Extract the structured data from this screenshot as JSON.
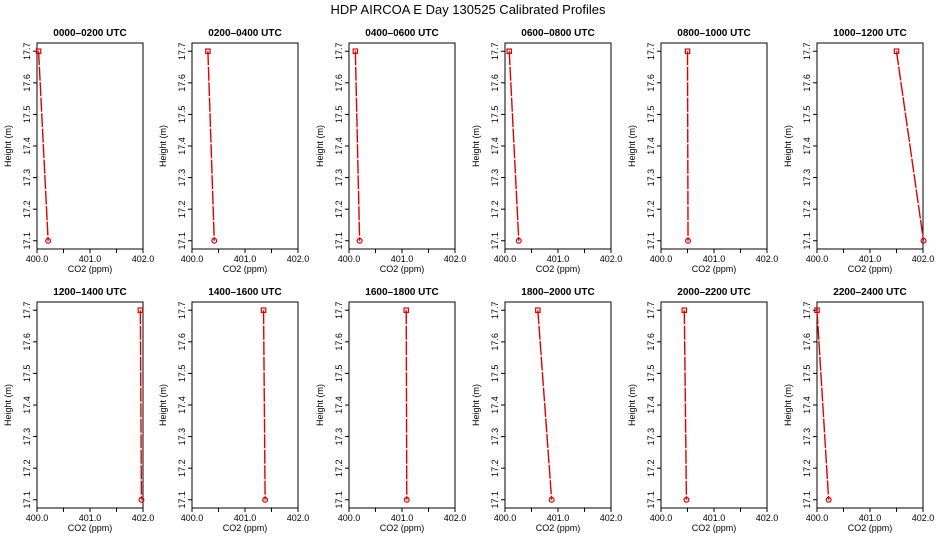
{
  "title": "HDP AIRCOA E  Day 130525  Calibrated Profiles",
  "colors": {
    "series": "#e00000",
    "axis": "#000000"
  },
  "chart_data": {
    "type": "line",
    "layout": {
      "rows": 2,
      "cols": 6
    },
    "xlabel": "CO2 (ppm)",
    "ylabel": "Height (m)",
    "xlim": [
      400.0,
      402.0
    ],
    "ylim": [
      17.1,
      17.7
    ],
    "xticks": [
      400.0,
      400.5,
      401.0,
      401.5,
      402.0
    ],
    "xtick_labels": [
      "400.0",
      "",
      "401.0",
      "",
      "402.0"
    ],
    "yticks": [
      17.1,
      17.2,
      17.3,
      17.4,
      17.5,
      17.6,
      17.7
    ],
    "ytick_labels": [
      "17.1",
      "17.2",
      "17.3",
      "17.4",
      "17.5",
      "17.6",
      "17.7"
    ],
    "panels": [
      {
        "title": "0000–0200 UTC",
        "x": [
          400.03,
          400.21
        ],
        "y": [
          17.7,
          17.1
        ]
      },
      {
        "title": "0200–0400 UTC",
        "x": [
          400.3,
          400.42
        ],
        "y": [
          17.7,
          17.1
        ]
      },
      {
        "title": "0400–0600 UTC",
        "x": [
          400.12,
          400.2
        ],
        "y": [
          17.7,
          17.1
        ]
      },
      {
        "title": "0600–0800 UTC",
        "x": [
          400.08,
          400.26
        ],
        "y": [
          17.7,
          17.1
        ]
      },
      {
        "title": "0800–1000 UTC",
        "x": [
          400.5,
          400.51
        ],
        "y": [
          17.7,
          17.1
        ]
      },
      {
        "title": "1000–1200 UTC",
        "x": [
          401.5,
          402.01
        ],
        "y": [
          17.7,
          17.1
        ]
      },
      {
        "title": "1200–1400 UTC",
        "x": [
          401.95,
          401.97
        ],
        "y": [
          17.7,
          17.1
        ]
      },
      {
        "title": "1400–1600 UTC",
        "x": [
          401.35,
          401.38
        ],
        "y": [
          17.7,
          17.1
        ]
      },
      {
        "title": "1600–1800 UTC",
        "x": [
          401.08,
          401.09
        ],
        "y": [
          17.7,
          17.1
        ]
      },
      {
        "title": "1800–2000 UTC",
        "x": [
          400.62,
          400.88
        ],
        "y": [
          17.7,
          17.1
        ]
      },
      {
        "title": "2000–2200 UTC",
        "x": [
          400.44,
          400.48
        ],
        "y": [
          17.7,
          17.1
        ]
      },
      {
        "title": "2200–2400 UTC",
        "x": [
          400.0,
          400.22
        ],
        "y": [
          17.7,
          17.1
        ]
      }
    ]
  }
}
